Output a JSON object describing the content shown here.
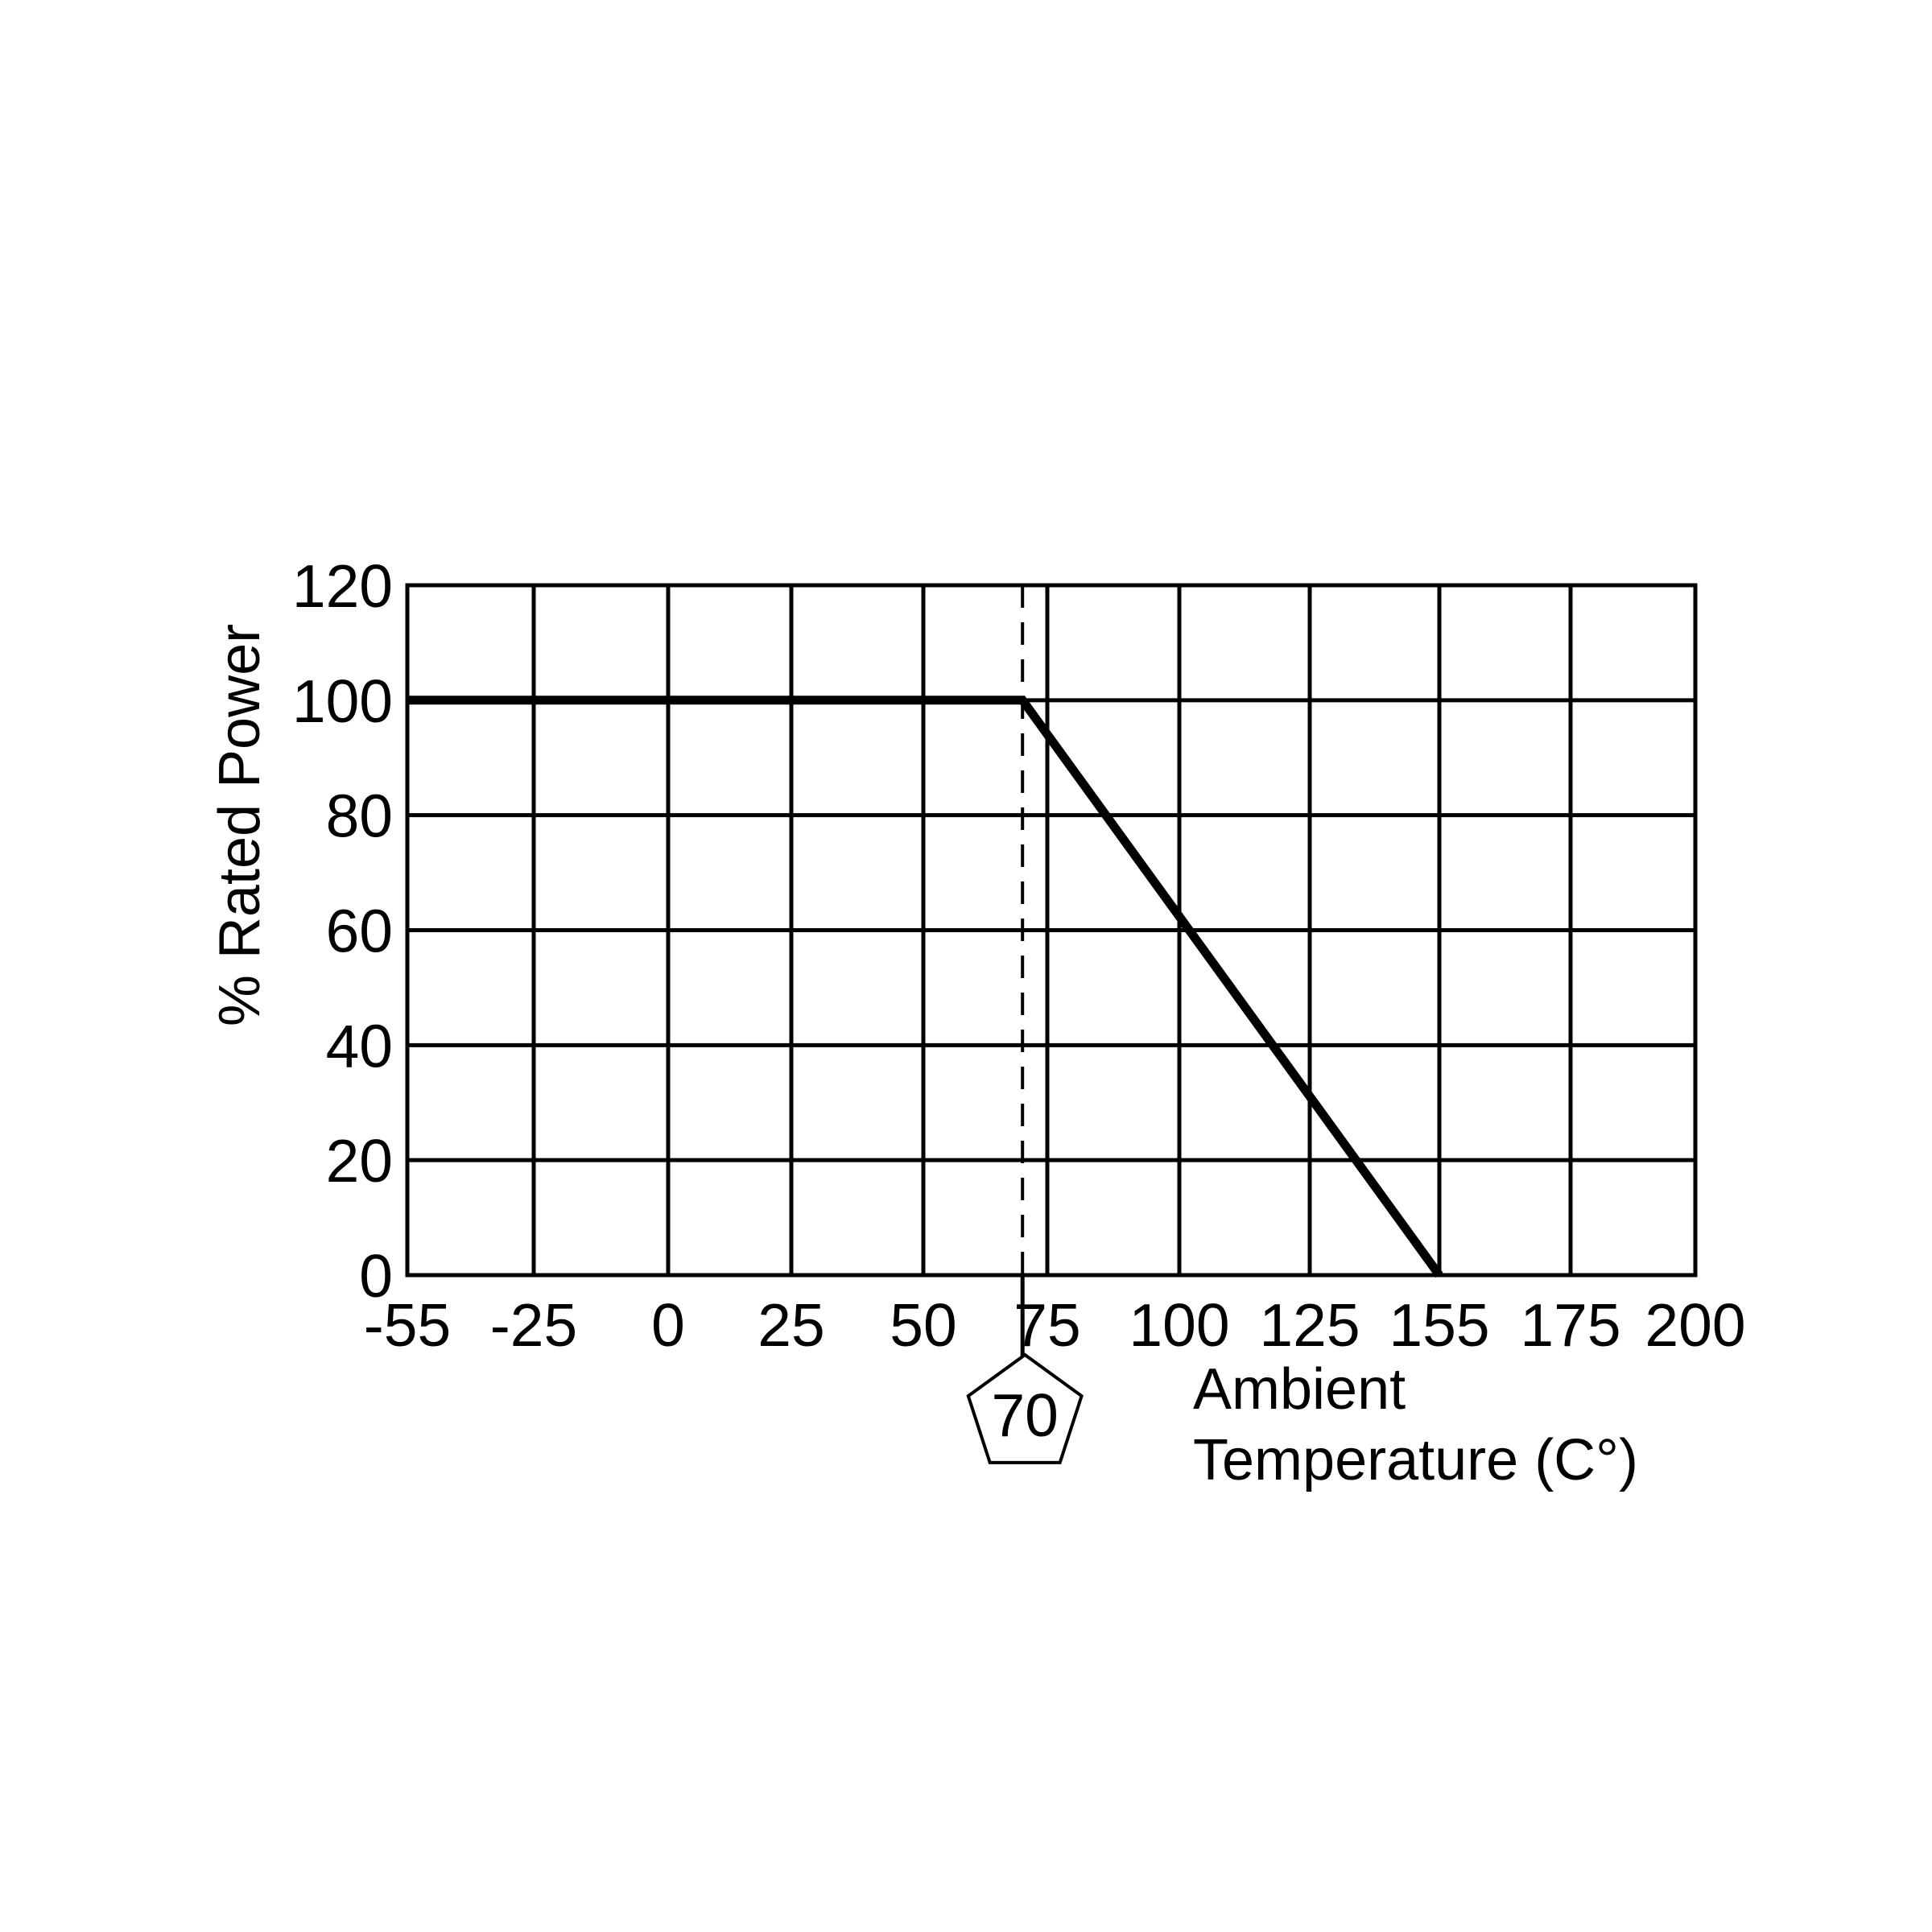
{
  "chart_data": {
    "type": "line",
    "title": "",
    "xlabel_lines": [
      "Ambient",
      "Temperature (C°)"
    ],
    "ylabel": "% Rated Power",
    "x_ticks": [
      {
        "value": -55,
        "label": "-55"
      },
      {
        "value": -25,
        "label": "-25"
      },
      {
        "value": 0,
        "label": "0"
      },
      {
        "value": 25,
        "label": "25"
      },
      {
        "value": 50,
        "label": "50"
      },
      {
        "value": 75,
        "label": "75"
      },
      {
        "value": 100,
        "label": "100"
      },
      {
        "value": 125,
        "label": "125"
      },
      {
        "value": 155,
        "label": "155"
      },
      {
        "value": 175,
        "label": "175"
      },
      {
        "value": 200,
        "label": "200"
      }
    ],
    "y_ticks": [
      {
        "value": 0,
        "label": "0"
      },
      {
        "value": 20,
        "label": "20"
      },
      {
        "value": 40,
        "label": "40"
      },
      {
        "value": 60,
        "label": "60"
      },
      {
        "value": 80,
        "label": "80"
      },
      {
        "value": 100,
        "label": "100"
      },
      {
        "value": 120,
        "label": "120"
      }
    ],
    "ylim": [
      0,
      120
    ],
    "grid": true,
    "legend": "none",
    "series": [
      {
        "x": [
          -55,
          70,
          155
        ],
        "y": [
          100,
          100,
          0
        ]
      }
    ],
    "annotations": [
      {
        "type": "vertical-dashed-line",
        "x": 70,
        "label": "70",
        "shape": "pentagon"
      }
    ],
    "colors": {
      "line": "#000000",
      "background": "#ffffff"
    }
  }
}
